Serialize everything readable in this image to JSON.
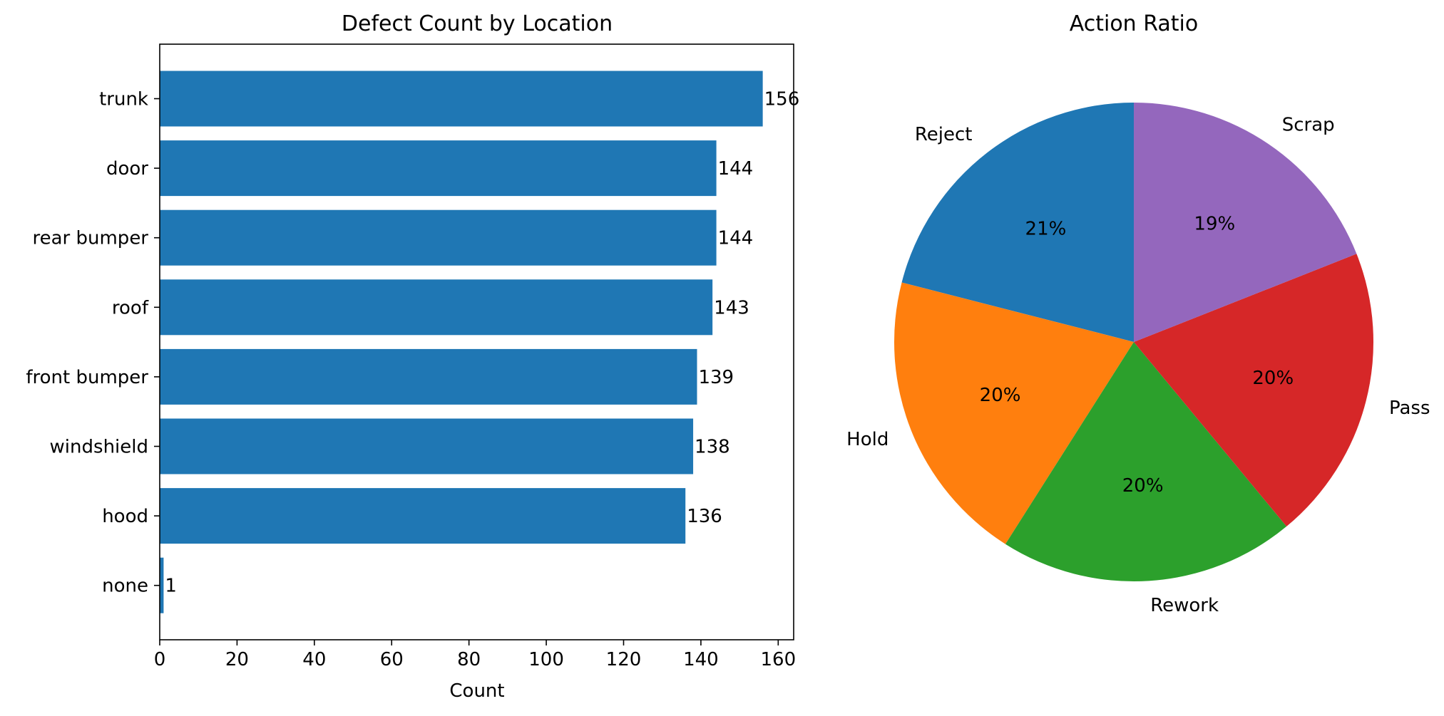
{
  "chart_data": [
    {
      "type": "bar",
      "orientation": "horizontal",
      "title": "Defect Count by Location",
      "xlabel": "Count",
      "ylabel": "",
      "xlim": [
        0,
        164
      ],
      "xticks": [
        0,
        20,
        40,
        60,
        80,
        100,
        120,
        140,
        160
      ],
      "categories": [
        "trunk",
        "door",
        "rear bumper",
        "roof",
        "front bumper",
        "windshield",
        "hood",
        "none"
      ],
      "values": [
        156,
        144,
        144,
        143,
        139,
        138,
        136,
        1
      ],
      "color": "#1f77b4",
      "data_labels": true
    },
    {
      "type": "pie",
      "title": "Action Ratio",
      "labels": [
        "Reject",
        "Hold",
        "Rework",
        "Pass",
        "Scrap"
      ],
      "values": [
        21,
        20,
        20,
        20,
        19
      ],
      "percent_labels": [
        "21%",
        "20%",
        "20%",
        "20%",
        "19%"
      ],
      "colors": [
        "#1f77b4",
        "#ff7f0e",
        "#2ca02c",
        "#d62728",
        "#9467bd"
      ]
    }
  ]
}
